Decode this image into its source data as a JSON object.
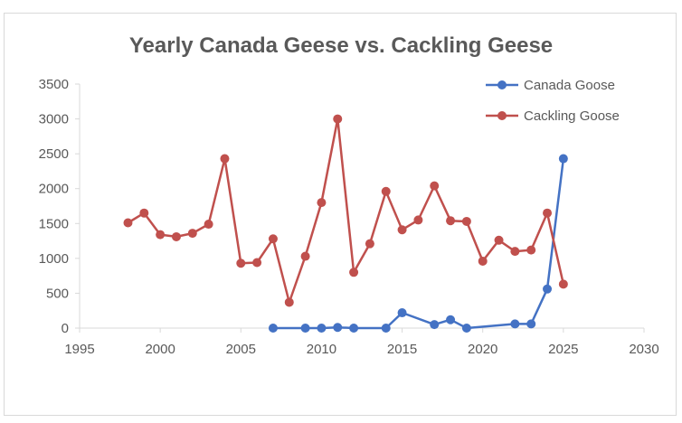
{
  "chart_data": {
    "type": "scatter",
    "title": "Yearly Canada Geese vs. Cackling Geese",
    "xlabel": "",
    "ylabel": "",
    "xlim": [
      1995,
      2030
    ],
    "ylim": [
      0,
      3500
    ],
    "x_ticks": [
      1995,
      2000,
      2005,
      2010,
      2015,
      2020,
      2025,
      2030
    ],
    "y_ticks": [
      0,
      500,
      1000,
      1500,
      2000,
      2500,
      3000,
      3500
    ],
    "grid": false,
    "legend_position": "top-right",
    "series": [
      {
        "name": "Canada Goose",
        "color": "#4472C4",
        "x": [
          2007,
          2009,
          2010,
          2011,
          2012,
          2014,
          2015,
          2017,
          2018,
          2019,
          2022,
          2023,
          2024,
          2025
        ],
        "y": [
          0,
          0,
          0,
          10,
          0,
          0,
          220,
          50,
          120,
          0,
          60,
          60,
          560,
          2430
        ]
      },
      {
        "name": "Cackling Goose",
        "color": "#C0504D",
        "x": [
          1998,
          1999,
          2000,
          2001,
          2002,
          2003,
          2004,
          2005,
          2006,
          2007,
          2008,
          2009,
          2010,
          2011,
          2012,
          2013,
          2014,
          2015,
          2016,
          2017,
          2018,
          2019,
          2020,
          2021,
          2022,
          2023,
          2024,
          2025
        ],
        "y": [
          1510,
          1650,
          1340,
          1310,
          1360,
          1490,
          2430,
          930,
          940,
          1280,
          370,
          1030,
          1800,
          3000,
          800,
          1210,
          1960,
          1410,
          1550,
          2040,
          1540,
          1530,
          960,
          1260,
          1100,
          1120,
          1650,
          630
        ]
      }
    ]
  }
}
